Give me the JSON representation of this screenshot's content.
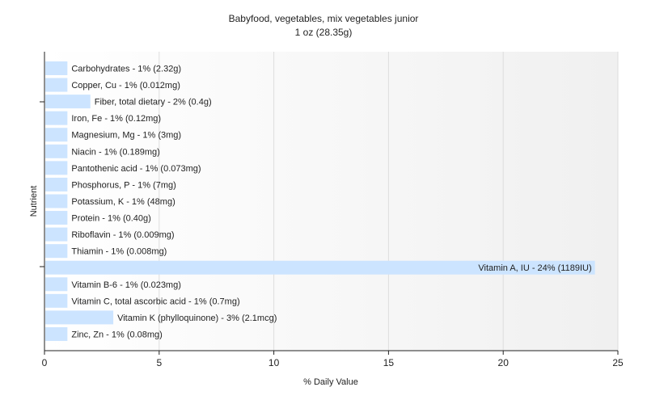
{
  "chart_data": {
    "type": "bar",
    "orientation": "horizontal",
    "title": "Babyfood, vegetables, mix vegetables junior",
    "subtitle": "1 oz (28.35g)",
    "xlabel": "% Daily Value",
    "ylabel": "Nutrient",
    "xlim": [
      0,
      25
    ],
    "xticks": [
      0,
      5,
      10,
      15,
      20,
      25
    ],
    "grid": true,
    "bar_color": "#cce4ff",
    "categories": [
      "Carbohydrates",
      "Copper, Cu",
      "Fiber, total dietary",
      "Iron, Fe",
      "Magnesium, Mg",
      "Niacin",
      "Pantothenic acid",
      "Phosphorus, P",
      "Potassium, K",
      "Protein",
      "Riboflavin",
      "Thiamin",
      "Vitamin A, IU",
      "Vitamin B-6",
      "Vitamin C, total ascorbic acid",
      "Vitamin K (phylloquinone)",
      "Zinc, Zn"
    ],
    "values": [
      1,
      1,
      2,
      1,
      1,
      1,
      1,
      1,
      1,
      1,
      1,
      1,
      24,
      1,
      1,
      3,
      1
    ],
    "labels": [
      "Carbohydrates - 1% (2.32g)",
      "Copper, Cu - 1% (0.012mg)",
      "Fiber, total dietary - 2% (0.4g)",
      "Iron, Fe - 1% (0.12mg)",
      "Magnesium, Mg - 1% (3mg)",
      "Niacin - 1% (0.189mg)",
      "Pantothenic acid - 1% (0.073mg)",
      "Phosphorus, P - 1% (7mg)",
      "Potassium, K - 1% (48mg)",
      "Protein - 1% (0.40g)",
      "Riboflavin - 1% (0.009mg)",
      "Thiamin - 1% (0.008mg)",
      "Vitamin A, IU - 24% (1189IU)",
      "Vitamin B-6 - 1% (0.023mg)",
      "Vitamin C, total ascorbic acid - 1% (0.7mg)",
      "Vitamin K (phylloquinone) - 3% (2.1mcg)",
      "Zinc, Zn - 1% (0.08mg)"
    ]
  }
}
